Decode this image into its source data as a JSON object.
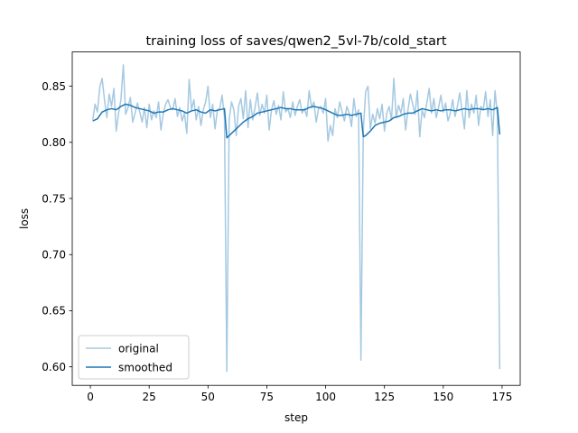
{
  "chart_data": {
    "type": "line",
    "title": "training loss of saves/qwen2_5vl-7b/cold_start",
    "xlabel": "step",
    "ylabel": "loss",
    "xlim": [
      -7.7,
      182.7
    ],
    "ylim": [
      0.5835,
      0.8805
    ],
    "xticks": [
      0,
      25,
      50,
      75,
      100,
      125,
      150,
      175
    ],
    "yticks": [
      0.6,
      0.65,
      0.7,
      0.75,
      0.8,
      0.85
    ],
    "xtick_labels": [
      "0",
      "25",
      "50",
      "75",
      "100",
      "125",
      "150",
      "175"
    ],
    "ytick_labels": [
      "0.60",
      "0.65",
      "0.70",
      "0.75",
      "0.80",
      "0.85"
    ],
    "grid": false,
    "legend": {
      "placement": "lower-left",
      "entries": [
        "original",
        "smoothed"
      ]
    },
    "series": [
      {
        "name": "original",
        "color": "#1f77b4",
        "alpha": 0.4,
        "x": [
          1,
          2,
          3,
          4,
          5,
          6,
          7,
          8,
          9,
          10,
          11,
          12,
          13,
          14,
          15,
          16,
          17,
          18,
          19,
          20,
          21,
          22,
          23,
          24,
          25,
          26,
          27,
          28,
          29,
          30,
          31,
          32,
          33,
          34,
          35,
          36,
          37,
          38,
          39,
          40,
          41,
          42,
          43,
          44,
          45,
          46,
          47,
          48,
          49,
          50,
          51,
          52,
          53,
          54,
          55,
          56,
          57,
          58,
          59,
          60,
          61,
          62,
          63,
          64,
          65,
          66,
          67,
          68,
          69,
          70,
          71,
          72,
          73,
          74,
          75,
          76,
          77,
          78,
          79,
          80,
          81,
          82,
          83,
          84,
          85,
          86,
          87,
          88,
          89,
          90,
          91,
          92,
          93,
          94,
          95,
          96,
          97,
          98,
          99,
          100,
          101,
          102,
          103,
          104,
          105,
          106,
          107,
          108,
          109,
          110,
          111,
          112,
          113,
          114,
          115,
          116,
          117,
          118,
          119,
          120,
          121,
          122,
          123,
          124,
          125,
          126,
          127,
          128,
          129,
          130,
          131,
          132,
          133,
          134,
          135,
          136,
          137,
          138,
          139,
          140,
          141,
          142,
          143,
          144,
          145,
          146,
          147,
          148,
          149,
          150,
          151,
          152,
          153,
          154,
          155,
          156,
          157,
          158,
          159,
          160,
          161,
          162,
          163,
          164,
          165,
          166,
          167,
          168,
          169,
          170,
          171,
          172,
          173,
          174
        ],
        "values": [
          0.82,
          0.834,
          0.827,
          0.849,
          0.857,
          0.838,
          0.822,
          0.843,
          0.832,
          0.848,
          0.81,
          0.826,
          0.838,
          0.869,
          0.825,
          0.831,
          0.84,
          0.818,
          0.826,
          0.835,
          0.827,
          0.818,
          0.831,
          0.813,
          0.834,
          0.82,
          0.828,
          0.822,
          0.836,
          0.811,
          0.826,
          0.834,
          0.838,
          0.831,
          0.829,
          0.839,
          0.823,
          0.831,
          0.819,
          0.826,
          0.808,
          0.856,
          0.829,
          0.838,
          0.82,
          0.832,
          0.815,
          0.829,
          0.836,
          0.85,
          0.822,
          0.834,
          0.812,
          0.829,
          0.83,
          0.842,
          0.822,
          0.596,
          0.82,
          0.836,
          0.829,
          0.806,
          0.832,
          0.839,
          0.821,
          0.846,
          0.813,
          0.838,
          0.82,
          0.831,
          0.844,
          0.824,
          0.834,
          0.826,
          0.842,
          0.811,
          0.829,
          0.837,
          0.825,
          0.833,
          0.82,
          0.845,
          0.827,
          0.83,
          0.822,
          0.836,
          0.824,
          0.832,
          0.838,
          0.826,
          0.83,
          0.823,
          0.846,
          0.831,
          0.836,
          0.818,
          0.83,
          0.832,
          0.826,
          0.839,
          0.801,
          0.815,
          0.806,
          0.83,
          0.822,
          0.836,
          0.827,
          0.819,
          0.832,
          0.826,
          0.814,
          0.839,
          0.823,
          0.829,
          0.606,
          0.81,
          0.845,
          0.85,
          0.812,
          0.825,
          0.817,
          0.83,
          0.821,
          0.834,
          0.81,
          0.826,
          0.832,
          0.82,
          0.857,
          0.822,
          0.833,
          0.826,
          0.839,
          0.811,
          0.829,
          0.843,
          0.834,
          0.825,
          0.846,
          0.805,
          0.829,
          0.822,
          0.835,
          0.848,
          0.826,
          0.839,
          0.822,
          0.831,
          0.842,
          0.827,
          0.835,
          0.819,
          0.826,
          0.838,
          0.823,
          0.832,
          0.844,
          0.828,
          0.812,
          0.846,
          0.822,
          0.834,
          0.826,
          0.842,
          0.815,
          0.832,
          0.829,
          0.845,
          0.823,
          0.838,
          0.806,
          0.846,
          0.825,
          0.598
        ]
      },
      {
        "name": "smoothed",
        "color": "#1f77b4",
        "alpha": 1.0,
        "x": [
          1,
          3,
          5,
          7,
          9,
          11,
          13,
          15,
          17,
          19,
          21,
          23,
          25,
          27,
          29,
          31,
          33,
          35,
          37,
          39,
          41,
          43,
          45,
          47,
          49,
          51,
          53,
          55,
          57,
          58,
          59,
          61,
          63,
          65,
          67,
          69,
          71,
          73,
          75,
          77,
          79,
          81,
          83,
          85,
          87,
          89,
          91,
          93,
          95,
          97,
          99,
          101,
          103,
          105,
          107,
          109,
          111,
          113,
          115,
          116,
          117,
          119,
          121,
          123,
          125,
          127,
          129,
          131,
          133,
          135,
          137,
          139,
          141,
          143,
          145,
          147,
          149,
          151,
          153,
          155,
          157,
          159,
          161,
          163,
          165,
          167,
          169,
          171,
          173,
          174
        ],
        "values": [
          0.819,
          0.821,
          0.827,
          0.829,
          0.83,
          0.829,
          0.832,
          0.834,
          0.833,
          0.831,
          0.83,
          0.829,
          0.828,
          0.826,
          0.827,
          0.827,
          0.829,
          0.83,
          0.829,
          0.828,
          0.826,
          0.828,
          0.829,
          0.827,
          0.826,
          0.829,
          0.828,
          0.829,
          0.83,
          0.804,
          0.806,
          0.81,
          0.814,
          0.818,
          0.821,
          0.823,
          0.826,
          0.827,
          0.828,
          0.829,
          0.83,
          0.831,
          0.83,
          0.83,
          0.829,
          0.829,
          0.829,
          0.831,
          0.832,
          0.831,
          0.83,
          0.828,
          0.826,
          0.824,
          0.824,
          0.825,
          0.824,
          0.825,
          0.826,
          0.805,
          0.806,
          0.81,
          0.815,
          0.817,
          0.818,
          0.819,
          0.822,
          0.823,
          0.825,
          0.826,
          0.826,
          0.828,
          0.83,
          0.829,
          0.828,
          0.829,
          0.828,
          0.829,
          0.829,
          0.828,
          0.829,
          0.83,
          0.829,
          0.83,
          0.83,
          0.829,
          0.83,
          0.829,
          0.831,
          0.807
        ]
      }
    ]
  }
}
